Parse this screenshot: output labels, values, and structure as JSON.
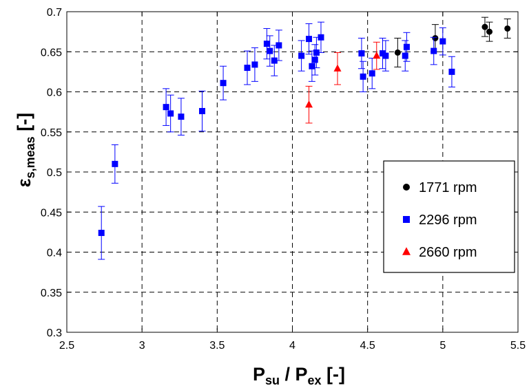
{
  "chart_data": {
    "type": "scatter",
    "xlabel": {
      "main": "P",
      "sub1": "su",
      "mid": " / P",
      "sub2": "ex",
      "end": " [-]"
    },
    "ylabel": {
      "main": "ε",
      "sub": "s,meas",
      "end": " [-]"
    },
    "xlim": [
      2.5,
      5.5
    ],
    "ylim": [
      0.3,
      0.7
    ],
    "xticks": [
      "2.5",
      "3",
      "3.5",
      "4",
      "4.5",
      "5",
      "5.5"
    ],
    "yticks": [
      "0.3",
      "0.35",
      "0.4",
      "0.45",
      "0.5",
      "0.55",
      "0.6",
      "0.65",
      "0.7"
    ],
    "grid": true,
    "legend_position": "right",
    "series": [
      {
        "name": "1771 rpm",
        "marker": "circle",
        "color": "#000000",
        "x": [
          4.7,
          4.95,
          5.28,
          5.31,
          5.43
        ],
        "y": [
          0.649,
          0.667,
          0.681,
          0.675,
          0.679
        ],
        "err": [
          0.018,
          0.017,
          0.012,
          0.012,
          0.012
        ]
      },
      {
        "name": "2296 rpm",
        "marker": "square",
        "color": "#0000ff",
        "x": [
          2.73,
          2.82,
          3.16,
          3.19,
          3.26,
          3.4,
          3.54,
          3.7,
          3.75,
          3.83,
          3.85,
          3.88,
          3.91,
          4.06,
          4.11,
          4.13,
          4.15,
          4.16,
          4.19,
          4.46,
          4.47,
          4.53,
          4.6,
          4.62,
          4.75,
          4.76,
          4.94,
          5.0,
          5.06
        ],
        "y": [
          0.424,
          0.51,
          0.581,
          0.573,
          0.569,
          0.576,
          0.611,
          0.63,
          0.634,
          0.66,
          0.651,
          0.639,
          0.658,
          0.645,
          0.666,
          0.632,
          0.64,
          0.649,
          0.668,
          0.648,
          0.619,
          0.623,
          0.648,
          0.645,
          0.645,
          0.656,
          0.651,
          0.663,
          0.625
        ],
        "err": [
          0.033,
          0.024,
          0.023,
          0.023,
          0.023,
          0.025,
          0.021,
          0.021,
          0.021,
          0.019,
          0.019,
          0.019,
          0.019,
          0.019,
          0.019,
          0.019,
          0.019,
          0.019,
          0.019,
          0.019,
          0.019,
          0.019,
          0.019,
          0.019,
          0.019,
          0.018,
          0.017,
          0.017,
          0.019
        ]
      },
      {
        "name": "2660 rpm",
        "marker": "triangle",
        "color": "#ff0000",
        "x": [
          4.11,
          4.3,
          4.56
        ],
        "y": [
          0.584,
          0.629,
          0.645
        ],
        "err": [
          0.023,
          0.02,
          0.017
        ]
      }
    ]
  }
}
